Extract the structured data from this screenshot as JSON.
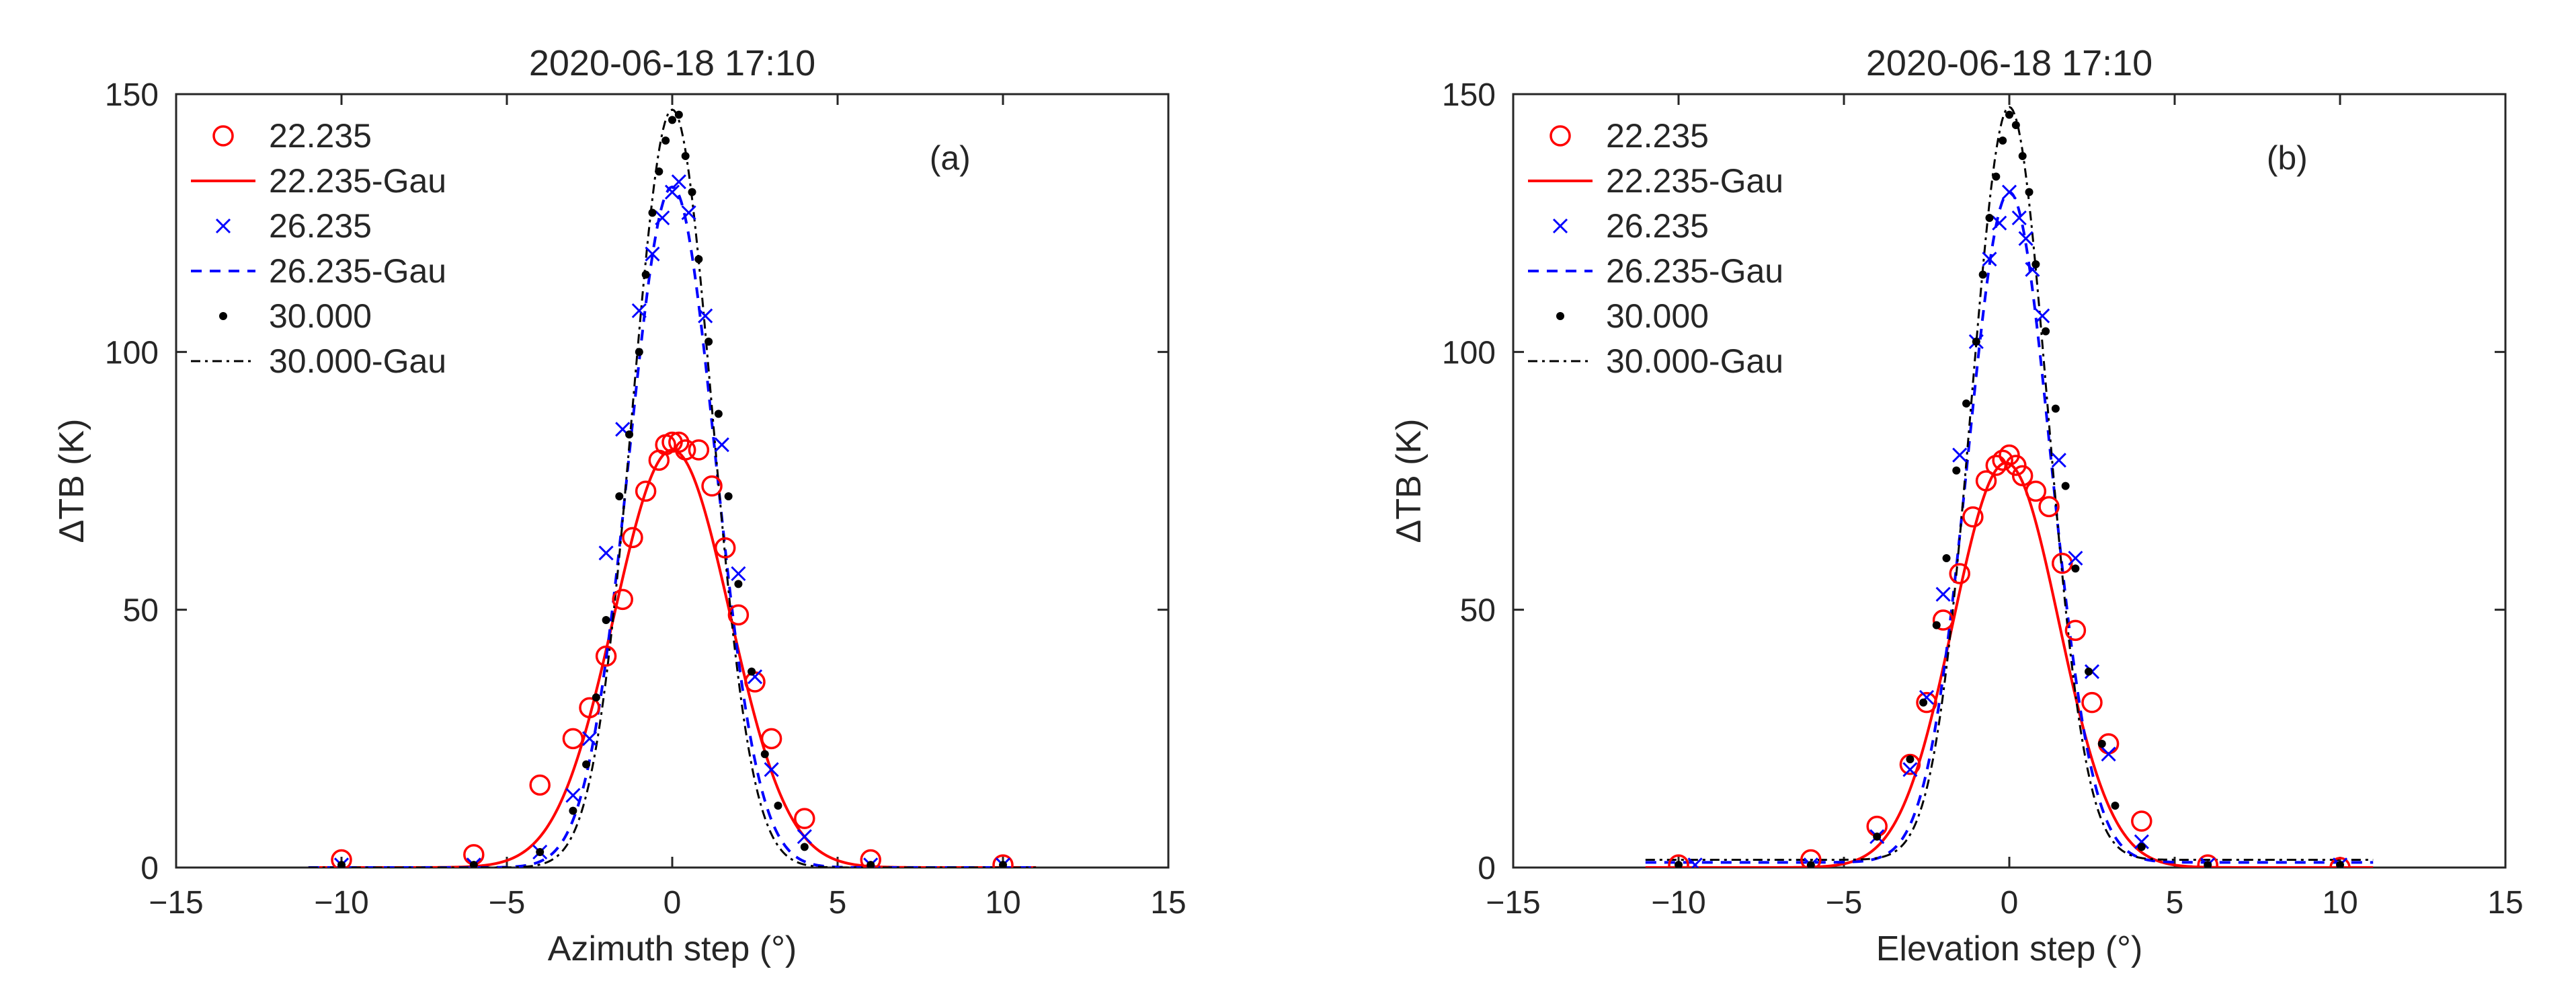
{
  "chart_data": [
    {
      "type": "scatter",
      "title": "2020-06-18 17:10",
      "panel_label": "(a)",
      "xlabel": "Azimuth step (°)",
      "ylabel": "ΔTB (K)",
      "xlim": [
        -15,
        15
      ],
      "ylim": [
        0,
        150
      ],
      "xticks": [
        -15,
        -10,
        -5,
        0,
        5,
        10,
        15
      ],
      "yticks": [
        0,
        50,
        100,
        150
      ],
      "legend_position": "top-left",
      "grid": false,
      "series": [
        {
          "name": "22.235",
          "kind": "markers",
          "marker": "circle",
          "color": "#ff0000",
          "points": [
            [
              -10,
              1.5
            ],
            [
              -6,
              2.5
            ],
            [
              -4,
              16
            ],
            [
              -3,
              25
            ],
            [
              -2.5,
              31
            ],
            [
              -2,
              41
            ],
            [
              -1.5,
              52
            ],
            [
              -1.2,
              64
            ],
            [
              -0.8,
              73
            ],
            [
              -0.4,
              79
            ],
            [
              -0.2,
              82
            ],
            [
              0,
              82.5
            ],
            [
              0.2,
              82.5
            ],
            [
              0.4,
              81
            ],
            [
              0.8,
              81
            ],
            [
              1.2,
              74
            ],
            [
              1.6,
              62
            ],
            [
              2,
              49
            ],
            [
              2.5,
              36
            ],
            [
              3,
              25
            ],
            [
              4,
              9.5
            ],
            [
              6,
              1.5
            ],
            [
              10,
              0.5
            ]
          ]
        },
        {
          "name": "22.235-Gau",
          "kind": "gaussian",
          "color": "#ff0000",
          "dash": "",
          "amplitude": 81,
          "center": 0,
          "sigma": 1.75,
          "offset": 0,
          "x_range": [
            -11,
            11
          ]
        },
        {
          "name": "26.235",
          "kind": "markers",
          "marker": "x",
          "color": "#0000ff",
          "points": [
            [
              -10,
              0.5
            ],
            [
              -6,
              0.5
            ],
            [
              -4,
              3
            ],
            [
              -3,
              14
            ],
            [
              -2.5,
              25
            ],
            [
              -2,
              61
            ],
            [
              -1.5,
              85
            ],
            [
              -1,
              108
            ],
            [
              -0.6,
              119
            ],
            [
              -0.3,
              126
            ],
            [
              0,
              131
            ],
            [
              0.2,
              133
            ],
            [
              0.5,
              127
            ],
            [
              1,
              107
            ],
            [
              1.5,
              82
            ],
            [
              2,
              57
            ],
            [
              2.5,
              37
            ],
            [
              3,
              19
            ],
            [
              4,
              6
            ],
            [
              6,
              0.5
            ],
            [
              10,
              0.5
            ]
          ]
        },
        {
          "name": "26.235-Gau",
          "kind": "gaussian",
          "color": "#0000ff",
          "dash": "16,12",
          "amplitude": 132,
          "center": 0,
          "sigma": 1.3,
          "offset": 0,
          "x_range": [
            -11,
            11
          ]
        },
        {
          "name": "30.000",
          "kind": "markers",
          "marker": "dot",
          "color": "#000000",
          "points": [
            [
              -10,
              0.5
            ],
            [
              -6,
              0.5
            ],
            [
              -4,
              3
            ],
            [
              -3,
              11
            ],
            [
              -2.6,
              20
            ],
            [
              -2.3,
              33
            ],
            [
              -2,
              48
            ],
            [
              -1.6,
              72
            ],
            [
              -1.3,
              84
            ],
            [
              -1,
              100
            ],
            [
              -0.8,
              115
            ],
            [
              -0.6,
              127
            ],
            [
              -0.4,
              135
            ],
            [
              -0.2,
              141
            ],
            [
              0,
              145
            ],
            [
              0.2,
              146
            ],
            [
              0.4,
              138
            ],
            [
              0.6,
              131
            ],
            [
              0.8,
              118
            ],
            [
              1.1,
              102
            ],
            [
              1.4,
              88
            ],
            [
              1.7,
              72
            ],
            [
              2,
              55
            ],
            [
              2.4,
              38
            ],
            [
              2.8,
              22
            ],
            [
              3.2,
              12
            ],
            [
              4,
              4
            ],
            [
              6,
              0.5
            ],
            [
              10,
              0.5
            ]
          ]
        },
        {
          "name": "30.000-Gau",
          "kind": "gaussian",
          "color": "#000000",
          "dash": "14,7,4,7",
          "amplitude": 147,
          "center": 0,
          "sigma": 1.2,
          "offset": 0,
          "x_range": [
            -11,
            11
          ]
        }
      ]
    },
    {
      "type": "scatter",
      "title": "2020-06-18 17:10",
      "panel_label": "(b)",
      "xlabel": "Elevation step (°)",
      "ylabel": "ΔTB (K)",
      "xlim": [
        -15,
        15
      ],
      "ylim": [
        0,
        150
      ],
      "xticks": [
        -15,
        -10,
        -5,
        0,
        5,
        10,
        15
      ],
      "yticks": [
        0,
        50,
        100,
        150
      ],
      "legend_position": "top-left",
      "grid": false,
      "series": [
        {
          "name": "22.235",
          "kind": "markers",
          "marker": "circle",
          "color": "#ff0000",
          "points": [
            [
              -10,
              0.5
            ],
            [
              -6,
              1.5
            ],
            [
              -4,
              8
            ],
            [
              -3,
              20
            ],
            [
              -2.5,
              32
            ],
            [
              -2,
              48
            ],
            [
              -1.5,
              57
            ],
            [
              -1.1,
              68
            ],
            [
              -0.7,
              75
            ],
            [
              -0.4,
              78
            ],
            [
              -0.2,
              79
            ],
            [
              0,
              80
            ],
            [
              0.2,
              78
            ],
            [
              0.4,
              76
            ],
            [
              0.8,
              73
            ],
            [
              1.2,
              70
            ],
            [
              1.6,
              59
            ],
            [
              2,
              46
            ],
            [
              2.5,
              32
            ],
            [
              3,
              24
            ],
            [
              4,
              9
            ],
            [
              6,
              0.5
            ],
            [
              10,
              0
            ]
          ]
        },
        {
          "name": "22.235-Gau",
          "kind": "gaussian",
          "color": "#ff0000",
          "dash": "",
          "amplitude": 78.5,
          "center": -0.1,
          "sigma": 1.6,
          "offset": 0,
          "x_range": [
            -11,
            11
          ]
        },
        {
          "name": "26.235",
          "kind": "markers",
          "marker": "x",
          "color": "#0000ff",
          "points": [
            [
              -9.5,
              0.5
            ],
            [
              -6,
              0.5
            ],
            [
              -4,
              6
            ],
            [
              -3,
              19
            ],
            [
              -2.5,
              33
            ],
            [
              -2,
              53
            ],
            [
              -1.5,
              80
            ],
            [
              -1,
              102
            ],
            [
              -0.6,
              118
            ],
            [
              -0.3,
              125
            ],
            [
              0,
              131
            ],
            [
              0.3,
              126
            ],
            [
              0.5,
              122
            ],
            [
              0.7,
              116
            ],
            [
              1,
              107
            ],
            [
              1.5,
              79
            ],
            [
              2,
              60
            ],
            [
              2.5,
              38
            ],
            [
              3,
              22
            ],
            [
              4,
              5
            ],
            [
              6,
              0.5
            ],
            [
              10,
              0.5
            ]
          ]
        },
        {
          "name": "26.235-Gau",
          "kind": "gaussian",
          "color": "#0000ff",
          "dash": "16,12",
          "amplitude": 130,
          "center": 0,
          "sigma": 1.25,
          "offset": 1,
          "x_range": [
            -11,
            11
          ]
        },
        {
          "name": "30.000",
          "kind": "markers",
          "marker": "dot",
          "color": "#000000",
          "points": [
            [
              -10,
              0.5
            ],
            [
              -6,
              0.5
            ],
            [
              -4,
              6
            ],
            [
              -3,
              21
            ],
            [
              -2.6,
              32
            ],
            [
              -2.2,
              47
            ],
            [
              -1.9,
              60
            ],
            [
              -1.6,
              77
            ],
            [
              -1.3,
              90
            ],
            [
              -1,
              102
            ],
            [
              -0.8,
              115
            ],
            [
              -0.6,
              126
            ],
            [
              -0.4,
              134
            ],
            [
              -0.2,
              141
            ],
            [
              0,
              146
            ],
            [
              0.2,
              144
            ],
            [
              0.4,
              138
            ],
            [
              0.6,
              131
            ],
            [
              0.8,
              117
            ],
            [
              1.1,
              104
            ],
            [
              1.4,
              89
            ],
            [
              1.7,
              74
            ],
            [
              2,
              58
            ],
            [
              2.4,
              38
            ],
            [
              2.8,
              24
            ],
            [
              3.2,
              12
            ],
            [
              4,
              4
            ],
            [
              6,
              0.5
            ],
            [
              10,
              0.5
            ]
          ]
        },
        {
          "name": "30.000-Gau",
          "kind": "gaussian",
          "color": "#000000",
          "dash": "14,7,4,7",
          "amplitude": 146,
          "center": 0,
          "sigma": 1.15,
          "offset": 1.5,
          "x_range": [
            -11,
            11
          ]
        }
      ]
    }
  ]
}
